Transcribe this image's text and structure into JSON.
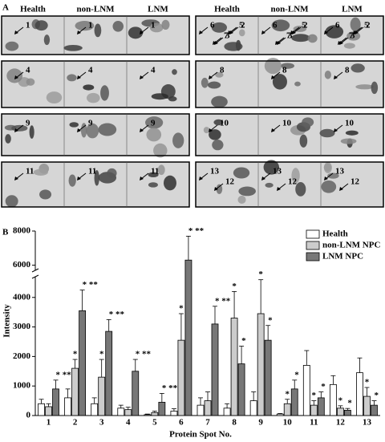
{
  "panel_a": {
    "label": "A",
    "groups": [
      {
        "headers": [
          "Health",
          "non-LNM",
          "LNM"
        ],
        "rows": [
          [
            [
              "1"
            ],
            [
              "1"
            ],
            [
              "1"
            ]
          ],
          [
            [
              "4"
            ],
            [
              "4"
            ],
            [
              "4"
            ]
          ],
          [
            [
              "9"
            ],
            [
              "9"
            ],
            [
              "9"
            ]
          ],
          [
            [
              "11"
            ],
            [
              "11"
            ],
            [
              "11"
            ]
          ]
        ]
      },
      {
        "headers": [
          "Health",
          "non-LNM",
          "LNM"
        ],
        "rows": [
          [
            [
              "6",
              "3",
              "2",
              "7",
              "5"
            ],
            [
              "6",
              "3",
              "2",
              "7",
              "5"
            ],
            [
              "6",
              "3",
              "2",
              "7",
              "5"
            ]
          ],
          [
            [
              "8"
            ],
            [
              "8"
            ],
            [
              "8"
            ]
          ],
          [
            [
              "10"
            ],
            [
              "10"
            ],
            [
              "10"
            ]
          ],
          [
            [
              "13",
              "12"
            ],
            [
              "13",
              "12"
            ],
            [
              "13",
              "12"
            ]
          ]
        ]
      }
    ]
  },
  "chart_data": {
    "type": "bar",
    "label": "B",
    "x_label": "Protein Spot No.",
    "y_label": "Intensity",
    "categories": [
      "1",
      "2",
      "3",
      "4",
      "5",
      "6",
      "7",
      "8",
      "9",
      "10",
      "11",
      "12",
      "13"
    ],
    "series": [
      {
        "name": "Health",
        "color": "#ffffff",
        "values": [
          400,
          600,
          400,
          250,
          30,
          150,
          350,
          250,
          500,
          50,
          1700,
          1050,
          1450
        ],
        "errors": [
          150,
          300,
          200,
          100,
          20,
          80,
          250,
          150,
          300,
          20,
          500,
          300,
          500
        ],
        "significance": [
          null,
          null,
          null,
          null,
          null,
          null,
          null,
          null,
          null,
          null,
          null,
          null,
          null
        ]
      },
      {
        "name": "non-LNM NPC",
        "color": "#cccccc",
        "values": [
          300,
          1600,
          1300,
          200,
          100,
          2550,
          500,
          3300,
          3450,
          400,
          350,
          250,
          650
        ],
        "errors": [
          100,
          300,
          600,
          80,
          50,
          900,
          300,
          900,
          1150,
          150,
          150,
          80,
          300
        ],
        "significance": [
          null,
          "*",
          "*",
          null,
          null,
          "*",
          null,
          "*",
          "*",
          "*",
          "*",
          "*",
          "*"
        ]
      },
      {
        "name": "LNM NPC",
        "color": "#777777",
        "values": [
          900,
          3550,
          2850,
          1500,
          450,
          6300,
          3100,
          1750,
          2550,
          900,
          600,
          180,
          350
        ],
        "errors": [
          300,
          700,
          400,
          400,
          300,
          1400,
          600,
          600,
          500,
          300,
          200,
          60,
          150
        ],
        "significance": [
          "* **",
          "* **",
          "* **",
          "* **",
          "* **",
          "* **",
          "* **",
          "*",
          "*",
          "*",
          "*",
          "*",
          "*"
        ]
      }
    ],
    "ylim": [
      0,
      8000
    ],
    "yticks": [
      0,
      1000,
      2000,
      3000,
      4000,
      6000,
      8000
    ],
    "axis_break": [
      4700,
      5700
    ],
    "legend": "top-right"
  }
}
